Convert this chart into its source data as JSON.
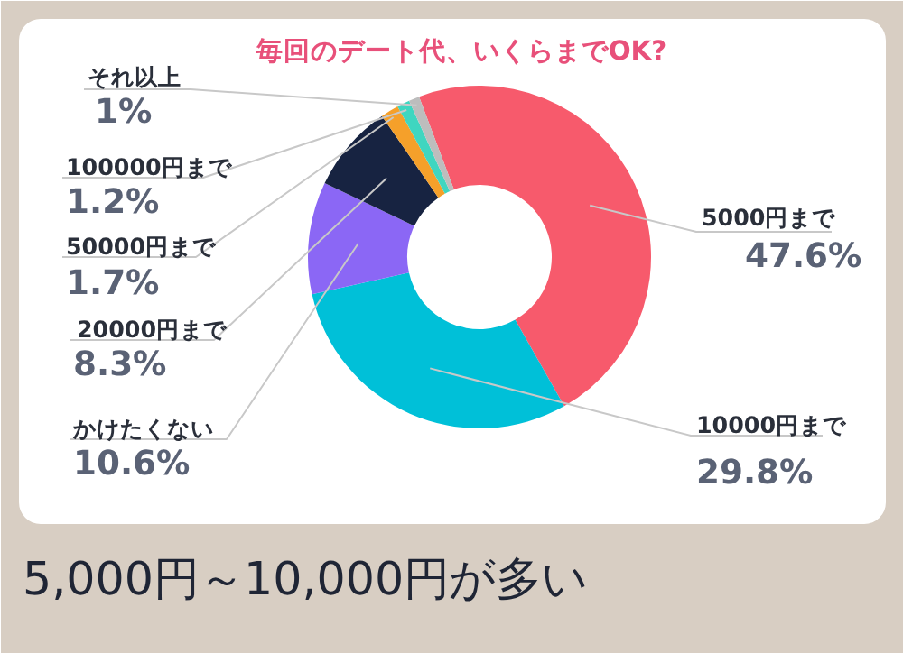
{
  "chart_data": {
    "type": "donut",
    "title": "毎回のデート代、いくらまでOK?",
    "categories": [
      "5000円まで",
      "10000円まで",
      "かけたくない",
      "20000円まで",
      "50000円まで",
      "100000円まで",
      "それ以上"
    ],
    "values": [
      47.6,
      29.8,
      10.6,
      8.3,
      1.7,
      1.2,
      1
    ],
    "value_labels": [
      "47.6%",
      "29.8%",
      "10.6%",
      "8.3%",
      "1.7%",
      "1.2%",
      "1%"
    ],
    "colors": [
      "#f75a6c",
      "#00c0d8",
      "#8b67f5",
      "#172341",
      "#f5a02a",
      "#3fd6c0",
      "#bdbdbd"
    ],
    "annotations": [
      "5,000円～10,000円が多い"
    ]
  }
}
